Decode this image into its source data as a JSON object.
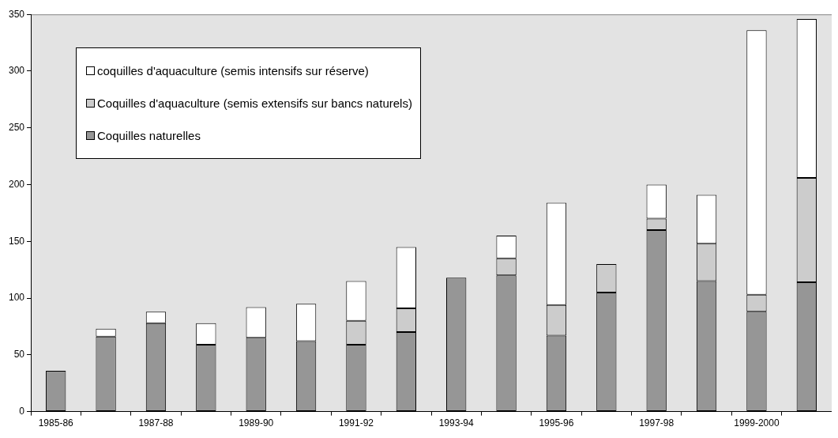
{
  "chart_data": {
    "type": "bar",
    "stacked": true,
    "categories": [
      "1985-86",
      null,
      "1987-88",
      null,
      "1989-90",
      null,
      "1991-92",
      null,
      "1993-94",
      null,
      "1995-96",
      null,
      "1997-98",
      null,
      "1999-2000",
      null
    ],
    "series": [
      {
        "name": "Coquilles naturelles",
        "color": "#969696",
        "values": [
          36,
          66,
          78,
          59,
          65,
          62,
          59,
          70,
          118,
          120,
          67,
          105,
          160,
          115,
          88,
          114
        ]
      },
      {
        "name": "Coquilles d'aquaculture (semis extensifs sur bancs naturels)",
        "color": "#cccccc",
        "values": [
          null,
          null,
          null,
          null,
          null,
          null,
          21,
          21,
          null,
          15,
          27,
          25,
          10,
          33,
          15,
          92
        ]
      },
      {
        "name": "coquilles d'aquaculture (semis intensifs sur réserve)",
        "color": "#ffffff",
        "values": [
          null,
          7,
          10,
          19,
          27,
          33,
          35,
          54,
          null,
          20,
          90,
          null,
          30,
          43,
          233,
          140
        ]
      }
    ],
    "ylim": [
      0,
      350
    ],
    "yticks": [
      0,
      50,
      100,
      150,
      200,
      250,
      300,
      350
    ],
    "grid": false,
    "legend": "top left"
  }
}
